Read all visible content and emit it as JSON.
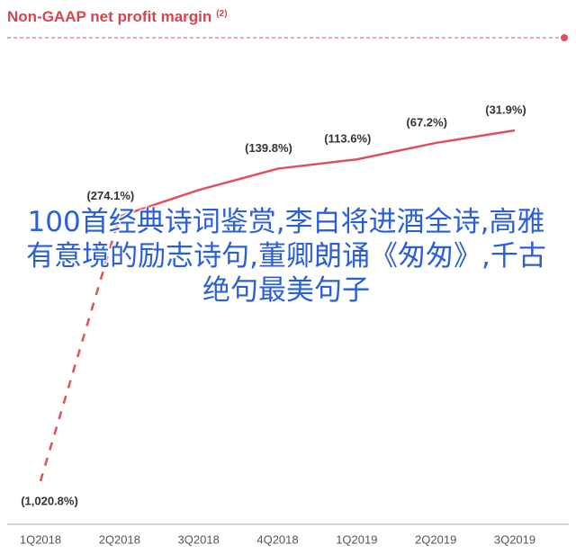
{
  "chart_data": {
    "type": "line",
    "title": "Non-GAAP net profit margin",
    "title_note": "(2)",
    "categories": [
      "1Q2018",
      "2Q2018",
      "3Q2018",
      "4Q2018",
      "1Q2019",
      "2Q2019",
      "3Q2019"
    ],
    "values": [
      -1020.8,
      -274.1,
      -200,
      -139.8,
      -113.6,
      -67.2,
      -31.9
    ],
    "value_labels": [
      "(1,020.8%)",
      "(274.1%)",
      null,
      "(139.8%)",
      "(113.6%)",
      "(67.2%)",
      "(31.9%)"
    ],
    "color": "#e0505a"
  },
  "overlay_text": "100首经典诗词鉴赏,李白将进酒全诗,高雅有意境的励志诗句,董卿朗诵《匆匆》,千古绝句最美句子"
}
